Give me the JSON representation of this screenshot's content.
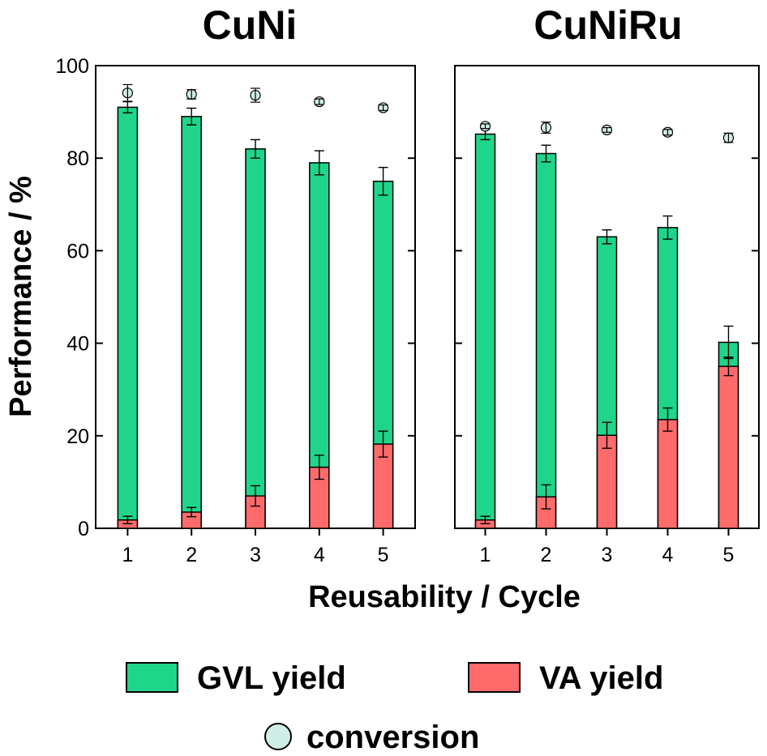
{
  "chart_data": [
    {
      "type": "bar",
      "title": "CuNi",
      "categories": [
        "1",
        "2",
        "3",
        "4",
        "5"
      ],
      "ylim": [
        0,
        100
      ],
      "yticks": [
        "0",
        "20",
        "40",
        "60",
        "80",
        "100"
      ],
      "series": [
        {
          "name": "GVL yield",
          "color": "#1fd58a",
          "values": [
            91,
            89,
            82,
            79,
            75
          ],
          "errors": [
            1.2,
            1.8,
            2.0,
            2.6,
            3.0
          ]
        },
        {
          "name": "VA yield",
          "color": "#ff6b6b",
          "values": [
            1.8,
            3.5,
            7.0,
            13.2,
            18.2
          ],
          "errors": [
            0.8,
            1.0,
            2.2,
            2.6,
            2.8
          ]
        },
        {
          "name": "conversion",
          "color": "#cfeee6",
          "values": [
            94.1,
            93.8,
            93.6,
            92.2,
            90.9
          ],
          "errors": [
            1.8,
            1.0,
            1.5,
            0.6,
            0.6
          ]
        }
      ]
    },
    {
      "type": "bar",
      "title": "CuNiRu",
      "categories": [
        "1",
        "2",
        "3",
        "4",
        "5"
      ],
      "ylim": [
        0,
        100
      ],
      "series": [
        {
          "name": "GVL yield",
          "color": "#1fd58a",
          "values": [
            85.2,
            81,
            63,
            65,
            40.2
          ],
          "errors": [
            1.2,
            1.8,
            1.5,
            2.5,
            3.5
          ]
        },
        {
          "name": "VA yield",
          "color": "#ff6b6b",
          "values": [
            1.8,
            6.8,
            20.1,
            23.5,
            35
          ],
          "errors": [
            0.8,
            2.6,
            2.8,
            2.5,
            2.0
          ]
        },
        {
          "name": "conversion",
          "color": "#cfeee6",
          "values": [
            86.9,
            86.6,
            86.1,
            85.6,
            84.4
          ],
          "errors": [
            0.5,
            1.2,
            0.5,
            0.6,
            1.0
          ]
        }
      ]
    }
  ],
  "axes": {
    "ylabel": "Performance / %",
    "xlabel": "Reusability / Cycle"
  },
  "legend": {
    "gvl_label": "GVL yield",
    "va_label": "VA yield",
    "conversion_label": "conversion"
  },
  "colors": {
    "gvl": "#1fd58a",
    "va": "#ff6b6b",
    "conversion": "#cfeee6",
    "axis": "#000000"
  }
}
